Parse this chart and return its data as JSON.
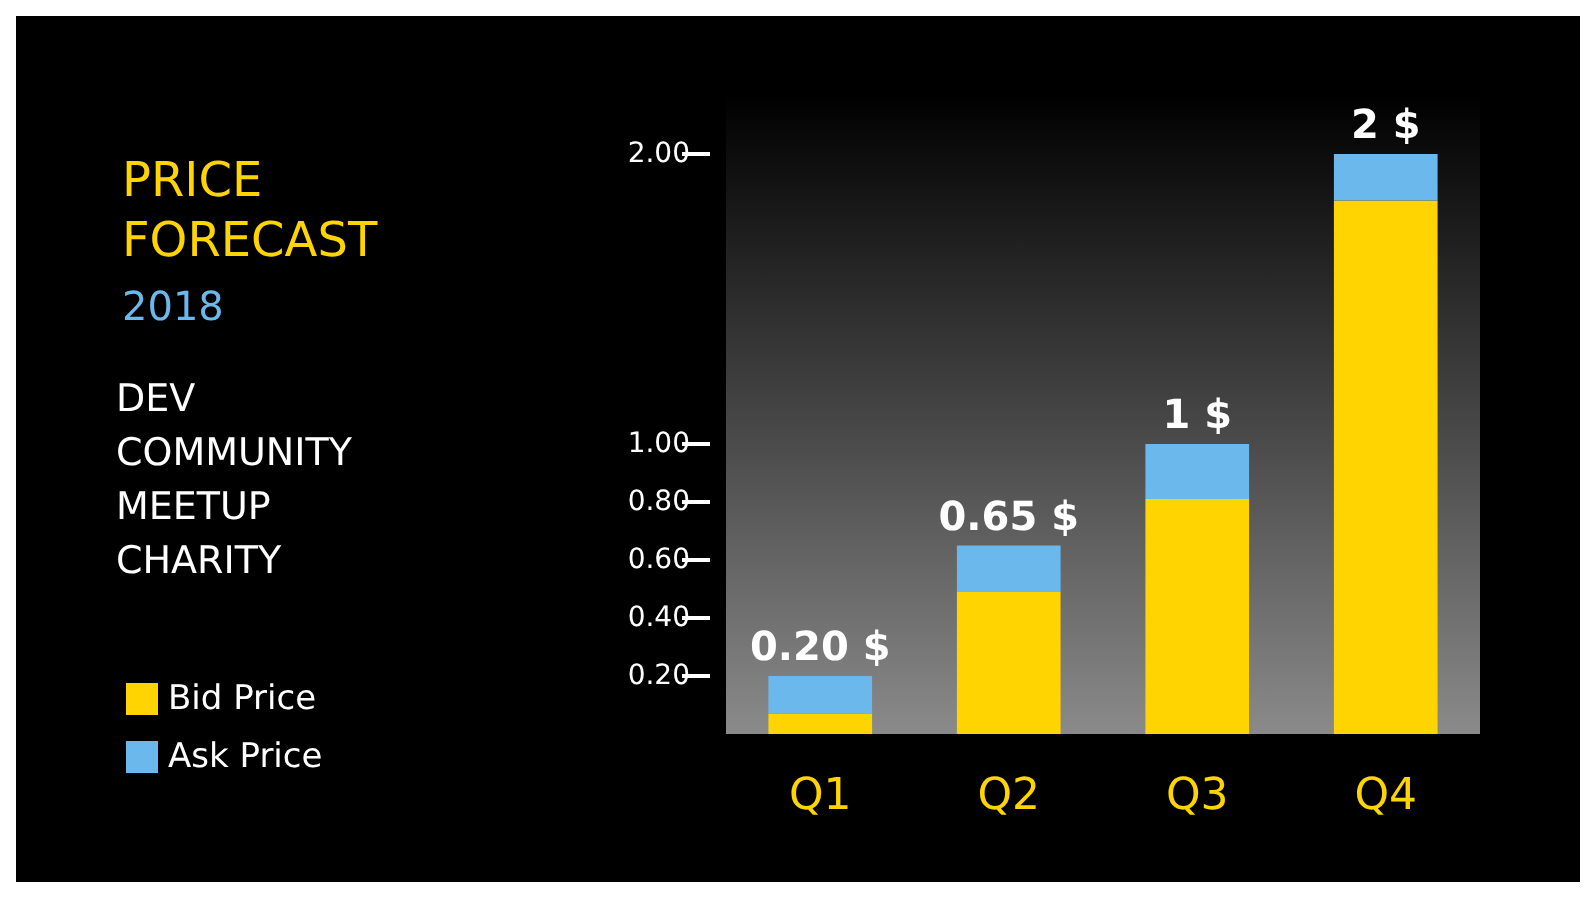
{
  "chart_data": {
    "type": "bar",
    "title": "PRICE FORECAST",
    "subtitle": "2018",
    "annotations": [
      "DEV COMMUNITY MEETUP CHARITY"
    ],
    "categories": [
      "Q1",
      "Q2",
      "Q3",
      "Q4"
    ],
    "stacked": true,
    "series": [
      {
        "name": "Bid Price",
        "color": "#ffd400",
        "values": [
          0.07,
          0.49,
          0.81,
          1.84
        ]
      },
      {
        "name": "Ask Price",
        "color": "#6bb9ec",
        "values": [
          0.13,
          0.16,
          0.19,
          0.16
        ]
      }
    ],
    "totals": [
      "0.20 $",
      "0.65 $",
      "1 $",
      "2 $"
    ],
    "ylim": [
      0,
      2.2
    ],
    "yticks": [
      {
        "value": 0.2,
        "label": "0.20"
      },
      {
        "value": 0.4,
        "label": "0.40"
      },
      {
        "value": 0.6,
        "label": "0.60"
      },
      {
        "value": 0.8,
        "label": "0.80"
      },
      {
        "value": 1,
        "label": "1.00"
      },
      {
        "value": 2,
        "label": "2.00"
      }
    ],
    "grid": false,
    "legend": "left"
  }
}
